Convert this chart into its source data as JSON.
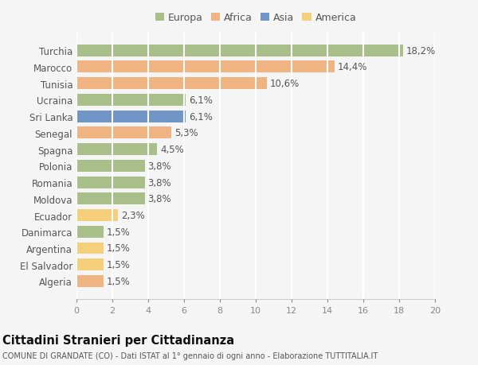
{
  "categories": [
    "Turchia",
    "Marocco",
    "Tunisia",
    "Ucraina",
    "Sri Lanka",
    "Senegal",
    "Spagna",
    "Polonia",
    "Romania",
    "Moldova",
    "Ecuador",
    "Danimarca",
    "Argentina",
    "El Salvador",
    "Algeria"
  ],
  "values": [
    18.2,
    14.4,
    10.6,
    6.1,
    6.1,
    5.3,
    4.5,
    3.8,
    3.8,
    3.8,
    2.3,
    1.5,
    1.5,
    1.5,
    1.5
  ],
  "labels": [
    "18,2%",
    "14,4%",
    "10,6%",
    "6,1%",
    "6,1%",
    "5,3%",
    "4,5%",
    "3,8%",
    "3,8%",
    "3,8%",
    "2,3%",
    "1,5%",
    "1,5%",
    "1,5%",
    "1,5%"
  ],
  "bar_colors": [
    "#a8bf8a",
    "#f0b482",
    "#f0b482",
    "#a8bf8a",
    "#7096c8",
    "#f0b482",
    "#a8bf8a",
    "#a8bf8a",
    "#a8bf8a",
    "#a8bf8a",
    "#f5cf7a",
    "#a8bf8a",
    "#f5cf7a",
    "#f5cf7a",
    "#f0b482"
  ],
  "legend_labels": [
    "Europa",
    "Africa",
    "Asia",
    "America"
  ],
  "legend_colors": [
    "#a8bf8a",
    "#f0b482",
    "#7096c8",
    "#f5cf7a"
  ],
  "title": "Cittadini Stranieri per Cittadinanza",
  "subtitle": "COMUNE DI GRANDATE (CO) - Dati ISTAT al 1° gennaio di ogni anno - Elaborazione TUTTITALIA.IT",
  "xlim": [
    0,
    20
  ],
  "xticks": [
    0,
    2,
    4,
    6,
    8,
    10,
    12,
    14,
    16,
    18,
    20
  ],
  "bg_color": "#f5f5f5",
  "grid_color": "#ffffff",
  "bar_height": 0.72,
  "label_fontsize": 8.5,
  "ytick_fontsize": 8.5,
  "xtick_fontsize": 8.0,
  "legend_fontsize": 9.0,
  "title_fontsize": 10.5,
  "subtitle_fontsize": 7.0
}
